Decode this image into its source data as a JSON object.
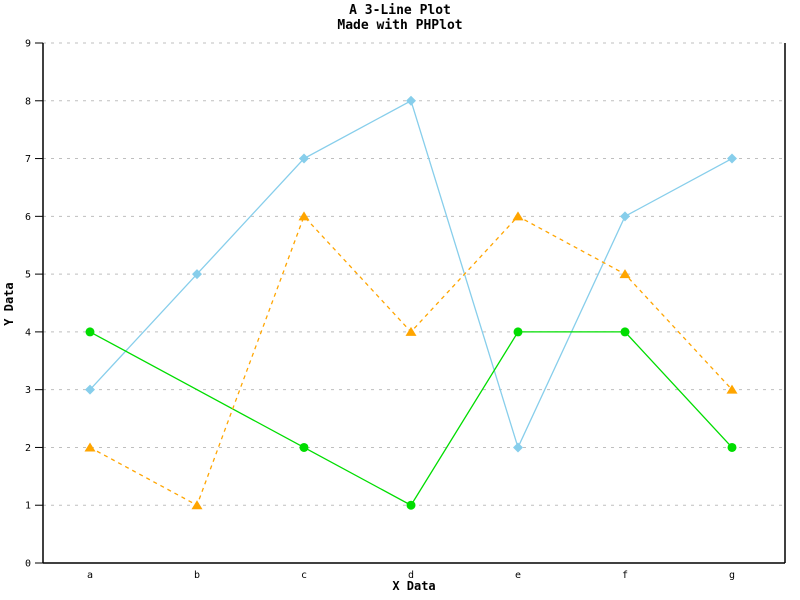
{
  "title": {
    "line1": "A 3-Line Plot",
    "line2": "Made with PHPlot"
  },
  "colors": {
    "background": "#FFFFFF",
    "axis": "#000000",
    "grid": "#BFBFBF",
    "text": "#000000"
  },
  "chart_data": {
    "type": "line",
    "title": "A 3-Line Plot",
    "subtitle": "Made with PHPlot",
    "xlabel": "X Data",
    "ylabel": "Y Data",
    "categories": [
      "a",
      "b",
      "c",
      "d",
      "e",
      "f",
      "g"
    ],
    "y_ticks": [
      0,
      1,
      2,
      3,
      4,
      5,
      6,
      7,
      8,
      9
    ],
    "ylim": [
      0,
      9
    ],
    "grid": "horizontal-dashed",
    "legend_position": "none",
    "border": "left-bottom-right",
    "series": [
      {
        "name": "series-1-skyblue",
        "color": "#87CEEB",
        "marker": "diamond",
        "line_style": "solid",
        "values": [
          3,
          5,
          7,
          8,
          2,
          6,
          7
        ]
      },
      {
        "name": "series-2-green",
        "color": "#00DD00",
        "marker": "circle",
        "line_style": "solid",
        "values": [
          4,
          null,
          2,
          1,
          4,
          4,
          2
        ]
      },
      {
        "name": "series-3-orange",
        "color": "#FFA500",
        "marker": "triangle",
        "line_style": "dashed",
        "values": [
          2,
          1,
          6,
          4,
          6,
          5,
          3
        ]
      }
    ]
  }
}
